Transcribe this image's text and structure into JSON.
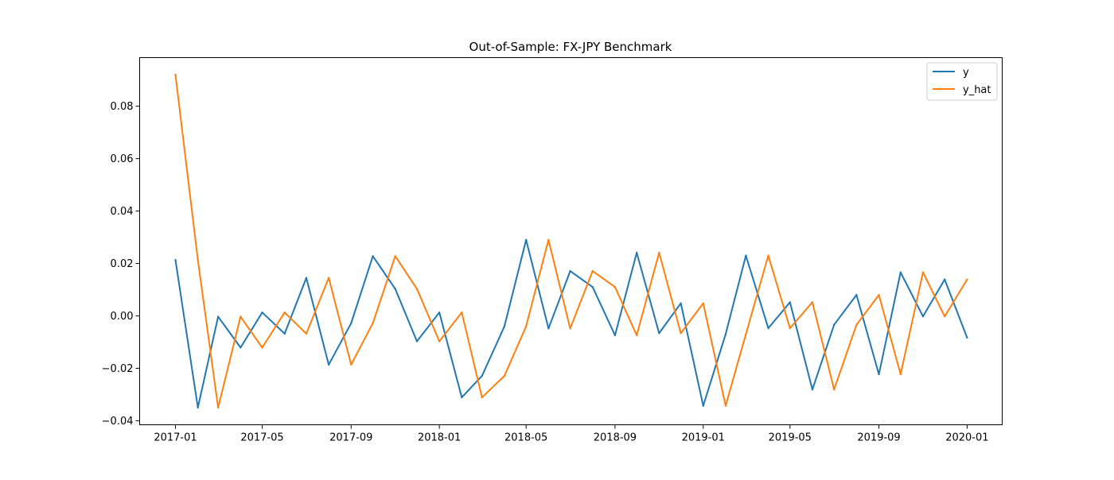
{
  "chart_data": {
    "type": "line",
    "title": "Out-of-Sample: FX-JPY Benchmark",
    "xlabel": "",
    "ylabel": "",
    "x": [
      "2017-01",
      "2017-02",
      "2017-03",
      "2017-04",
      "2017-05",
      "2017-06",
      "2017-07",
      "2017-08",
      "2017-09",
      "2017-10",
      "2017-11",
      "2017-12",
      "2018-01",
      "2018-02",
      "2018-03",
      "2018-04",
      "2018-05",
      "2018-06",
      "2018-07",
      "2018-08",
      "2018-09",
      "2018-10",
      "2018-11",
      "2018-12",
      "2019-01",
      "2019-02",
      "2019-03",
      "2019-04",
      "2019-05",
      "2019-06",
      "2019-07",
      "2019-08",
      "2019-09",
      "2019-10",
      "2019-11",
      "2019-12",
      "2020-01"
    ],
    "series": [
      {
        "name": "y",
        "color": "#1f77b4",
        "values": [
          0.0213,
          -0.035,
          -0.0003,
          -0.0121,
          0.0013,
          -0.0068,
          0.0145,
          -0.0186,
          -0.0028,
          0.0228,
          0.0103,
          -0.0097,
          0.0013,
          -0.0311,
          -0.0229,
          -0.004,
          0.029,
          -0.0048,
          0.0171,
          0.011,
          -0.0074,
          0.0241,
          -0.0066,
          0.0048,
          -0.0343,
          -0.007,
          0.023,
          -0.0047,
          0.0052,
          -0.0281,
          -0.0034,
          0.008,
          -0.0223,
          0.0166,
          -0.0002,
          0.0139,
          -0.0083
        ]
      },
      {
        "name": "y_hat",
        "color": "#ff7f0e",
        "values": [
          0.092,
          0.0213,
          -0.035,
          -0.0003,
          -0.0121,
          0.0013,
          -0.0068,
          0.0145,
          -0.0186,
          -0.0028,
          0.0228,
          0.0103,
          -0.0097,
          0.0013,
          -0.0311,
          -0.0229,
          -0.004,
          0.029,
          -0.0048,
          0.0171,
          0.011,
          -0.0074,
          0.0241,
          -0.0066,
          0.0048,
          -0.0343,
          -0.007,
          0.023,
          -0.0047,
          0.0052,
          -0.0281,
          -0.0034,
          0.008,
          -0.0223,
          0.0166,
          -0.0002,
          0.0139
        ]
      }
    ],
    "xticks": [
      "2017-01",
      "2017-05",
      "2017-09",
      "2018-01",
      "2018-05",
      "2018-09",
      "2019-01",
      "2019-05",
      "2019-09",
      "2020-01"
    ],
    "yticks": [
      -0.04,
      -0.02,
      0.0,
      0.02,
      0.04,
      0.06,
      0.08
    ],
    "ytick_labels": [
      "−0.04",
      "−0.02",
      "0.00",
      "0.02",
      "0.04",
      "0.06",
      "0.08"
    ],
    "xlim": [
      "2016-11-13",
      "2020-02-18"
    ],
    "ylim": [
      -0.0414,
      0.0984
    ],
    "grid": false,
    "legend_position": "top-right"
  }
}
